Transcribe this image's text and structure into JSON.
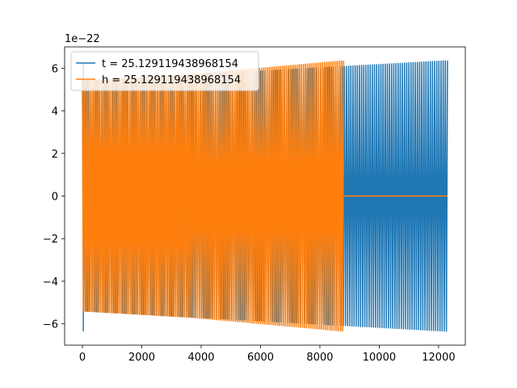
{
  "chart_data": {
    "type": "line",
    "title": "",
    "xlabel": "",
    "ylabel": "",
    "y_scale_label": "1e−22",
    "xlim": [
      -600,
      12900
    ],
    "ylim": [
      -7.0,
      7.0
    ],
    "x_ticks": [
      0,
      2000,
      4000,
      6000,
      8000,
      10000,
      12000
    ],
    "x_tick_labels": [
      "0",
      "2000",
      "4000",
      "6000",
      "8000",
      "10000",
      "12000"
    ],
    "y_ticks": [
      -6,
      -4,
      -2,
      0,
      2,
      4,
      6
    ],
    "y_tick_labels": [
      "−6",
      "−4",
      "−2",
      "0",
      "2",
      "4",
      "6"
    ],
    "grid": false,
    "legend_position": "upper-left",
    "series": [
      {
        "name": "t = 25.129119438968154",
        "color": "#1f77b4",
        "segments": [
          {
            "kind": "oscillation",
            "x": [
              0,
              12300
            ],
            "amplitude_start": 5.4,
            "amplitude_end": 6.35,
            "cycles": 170
          },
          {
            "kind": "spike",
            "x": 30,
            "y": [
              -6.35,
              6.2
            ]
          }
        ]
      },
      {
        "name": "h = 25.129119438968154",
        "color": "#ff7f0e",
        "segments": [
          {
            "kind": "oscillation",
            "x": [
              0,
              3650
            ],
            "amplitude_start": 5.4,
            "amplitude_end": 5.7,
            "cycles": 62
          },
          {
            "kind": "flat",
            "x": [
              100,
              3650
            ],
            "y": 0
          },
          {
            "kind": "oscillation",
            "x": [
              3650,
              8800
            ],
            "amplitude_start": 5.7,
            "amplitude_end": 6.35,
            "cycles": 80
          },
          {
            "kind": "flat",
            "x": [
              8800,
              12300
            ],
            "y": 0
          }
        ]
      }
    ]
  }
}
